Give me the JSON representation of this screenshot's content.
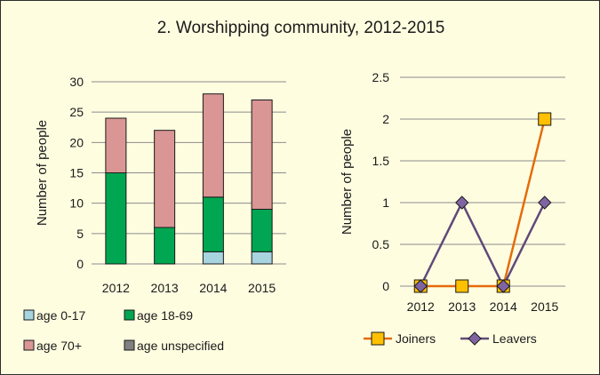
{
  "title": "2. Worshipping community, 2012-2015",
  "chart_data": [
    {
      "type": "bar",
      "stacked": true,
      "categories": [
        "2012",
        "2013",
        "2014",
        "2015"
      ],
      "series": [
        {
          "name": "age 0-17",
          "color": "#a8d4e0",
          "values": [
            0,
            0,
            2,
            2
          ]
        },
        {
          "name": "age 18-69",
          "color": "#00a651",
          "values": [
            15,
            6,
            9,
            7
          ]
        },
        {
          "name": "age 70+",
          "color": "#d99694",
          "values": [
            9,
            16,
            17,
            18
          ]
        },
        {
          "name": "age unspecified",
          "color": "#808080",
          "values": [
            0,
            0,
            0,
            0
          ]
        }
      ],
      "ylabel": "Number of people",
      "ylim": [
        0,
        30
      ],
      "yticks": [
        "0",
        "5",
        "10",
        "15",
        "20",
        "25",
        "30"
      ],
      "grid": true,
      "legend_position": "bottom"
    },
    {
      "type": "line",
      "categories": [
        "2012",
        "2013",
        "2014",
        "2015"
      ],
      "series": [
        {
          "name": "Joiners",
          "color": "#e46c0a",
          "marker": "square",
          "marker_color": "#ffc000",
          "values": [
            0,
            0,
            0,
            2
          ]
        },
        {
          "name": "Leavers",
          "color": "#604a7b",
          "marker": "diamond",
          "marker_color": "#8064a2",
          "values": [
            0,
            1,
            0,
            1
          ]
        }
      ],
      "ylabel": "Number of people",
      "ylim": [
        0,
        2.5
      ],
      "yticks": [
        "0",
        "0.5",
        "1",
        "1.5",
        "2",
        "2.5"
      ],
      "grid": true,
      "legend_position": "bottom"
    }
  ]
}
